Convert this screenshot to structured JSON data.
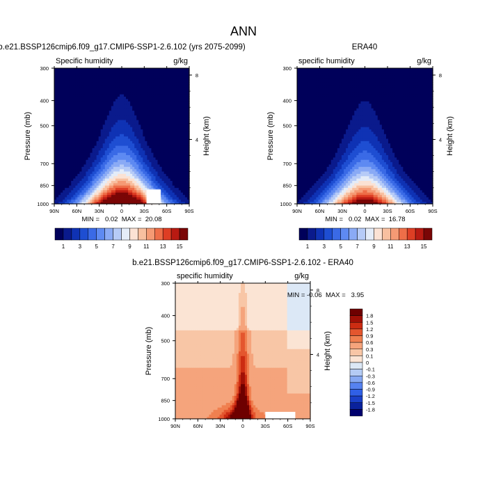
{
  "figure": {
    "title": "ANN"
  },
  "chart_data": [
    {
      "type": "heatmap",
      "title": "b.e21.BSSP126cmip6.f09_g17.CMIP6-SSP1-2.6.102 (yrs 2075-2099)",
      "left_label": "Specific humidity",
      "right_label": "g/kg",
      "xlabel": "",
      "ylabel": "Pressure (mb)",
      "y2label": "Height (km)",
      "x_ticks": [
        "90N",
        "60N",
        "30N",
        "0",
        "30S",
        "60S",
        "90S"
      ],
      "x_range": [
        90,
        -90
      ],
      "y_ticks": [
        300,
        400,
        500,
        700,
        850,
        1000
      ],
      "y_range": [
        1000,
        300
      ],
      "y2_ticks": [
        4,
        8
      ],
      "min_max_text": "MIN =   0.02  MAX =  20.08",
      "min": 0.02,
      "max": 20.08,
      "peak": {
        "lat": 0,
        "p": 1000,
        "value": 20.08
      },
      "levels": [
        1,
        2,
        3,
        4,
        5,
        6,
        7,
        8,
        9,
        10,
        11,
        12,
        13,
        14,
        15
      ],
      "colorbar_labels": [
        "1",
        "3",
        "5",
        "7",
        "9",
        "11",
        "13",
        "15"
      ],
      "missing_region": {
        "lat_from": -33,
        "lat_to": -52,
        "p_from": 880,
        "p_to": 1000
      }
    },
    {
      "type": "heatmap",
      "title": "ERA40",
      "left_label": "specific humidity",
      "right_label": "g/kg",
      "xlabel": "",
      "ylabel": "Pressure (mb)",
      "y2label": "Height (km)",
      "x_ticks": [
        "90N",
        "60N",
        "30N",
        "0",
        "30S",
        "60S",
        "90S"
      ],
      "x_range": [
        90,
        -90
      ],
      "y_ticks": [
        300,
        400,
        500,
        700,
        850,
        1000
      ],
      "y_range": [
        1000,
        300
      ],
      "y2_ticks": [
        4,
        8
      ],
      "min_max_text": "MIN =   0.02  MAX =  16.78",
      "min": 0.02,
      "max": 16.78,
      "peak": {
        "lat": 0,
        "p": 1000,
        "value": 16.78
      },
      "levels": [
        1,
        2,
        3,
        4,
        5,
        6,
        7,
        8,
        9,
        10,
        11,
        12,
        13,
        14,
        15
      ],
      "colorbar_labels": [
        "1",
        "3",
        "5",
        "7",
        "9",
        "11",
        "13",
        "15"
      ]
    },
    {
      "type": "heatmap",
      "title": "b.e21.BSSP126cmip6.f09_g17.CMIP6-SSP1-2.6.102 - ERA40",
      "left_label": "specific humidity",
      "right_label": "g/kg",
      "xlabel": "",
      "ylabel": "Pressure (mb)",
      "y2label": "Height (km)",
      "x_ticks": [
        "90N",
        "60N",
        "30N",
        "0",
        "30S",
        "60S",
        "90S"
      ],
      "x_range": [
        90,
        -90
      ],
      "y_ticks": [
        300,
        400,
        500,
        700,
        850,
        1000
      ],
      "y_range": [
        1000,
        300
      ],
      "y2_ticks": [
        4,
        8
      ],
      "min_max_text": "MIN = -0.06  MAX =   3.95",
      "min": -0.06,
      "max": 3.95,
      "levels": [
        -1.8,
        -1.5,
        -1.2,
        -0.9,
        -0.6,
        -0.3,
        -0.1,
        0,
        0.1,
        0.3,
        0.6,
        0.9,
        1.2,
        1.5,
        1.8
      ],
      "colorbar_labels": [
        "1.8",
        "1.5",
        "1.2",
        "0.9",
        "0.6",
        "0.3",
        "0.1",
        "0",
        "-0.1",
        "-0.3",
        "-0.6",
        "-0.9",
        "-1.2",
        "-1.5",
        "-1.8"
      ],
      "missing_region": {
        "lat_from": -30,
        "lat_to": -70,
        "p_from": 940,
        "p_to": 1000
      }
    }
  ],
  "palettes": {
    "absolute": [
      "#00005a",
      "#0a1a8c",
      "#0f32b4",
      "#1e4ed2",
      "#3a6ae6",
      "#5e8af2",
      "#8aaaf5",
      "#b6cbf7",
      "#e4ecf8",
      "#fbe2d4",
      "#f8c0a0",
      "#f59a74",
      "#ee6e48",
      "#de3e24",
      "#b81a12",
      "#7a0606"
    ],
    "difference": [
      "#00006e",
      "#0a229c",
      "#1a40c8",
      "#3060e6",
      "#5682f0",
      "#86a8f2",
      "#b4cbf4",
      "#dce8f6",
      "#fbe4d4",
      "#f8c6a6",
      "#f5a47c",
      "#f08050",
      "#e4562e",
      "#cc2c12",
      "#a01006",
      "#6e0000"
    ]
  }
}
